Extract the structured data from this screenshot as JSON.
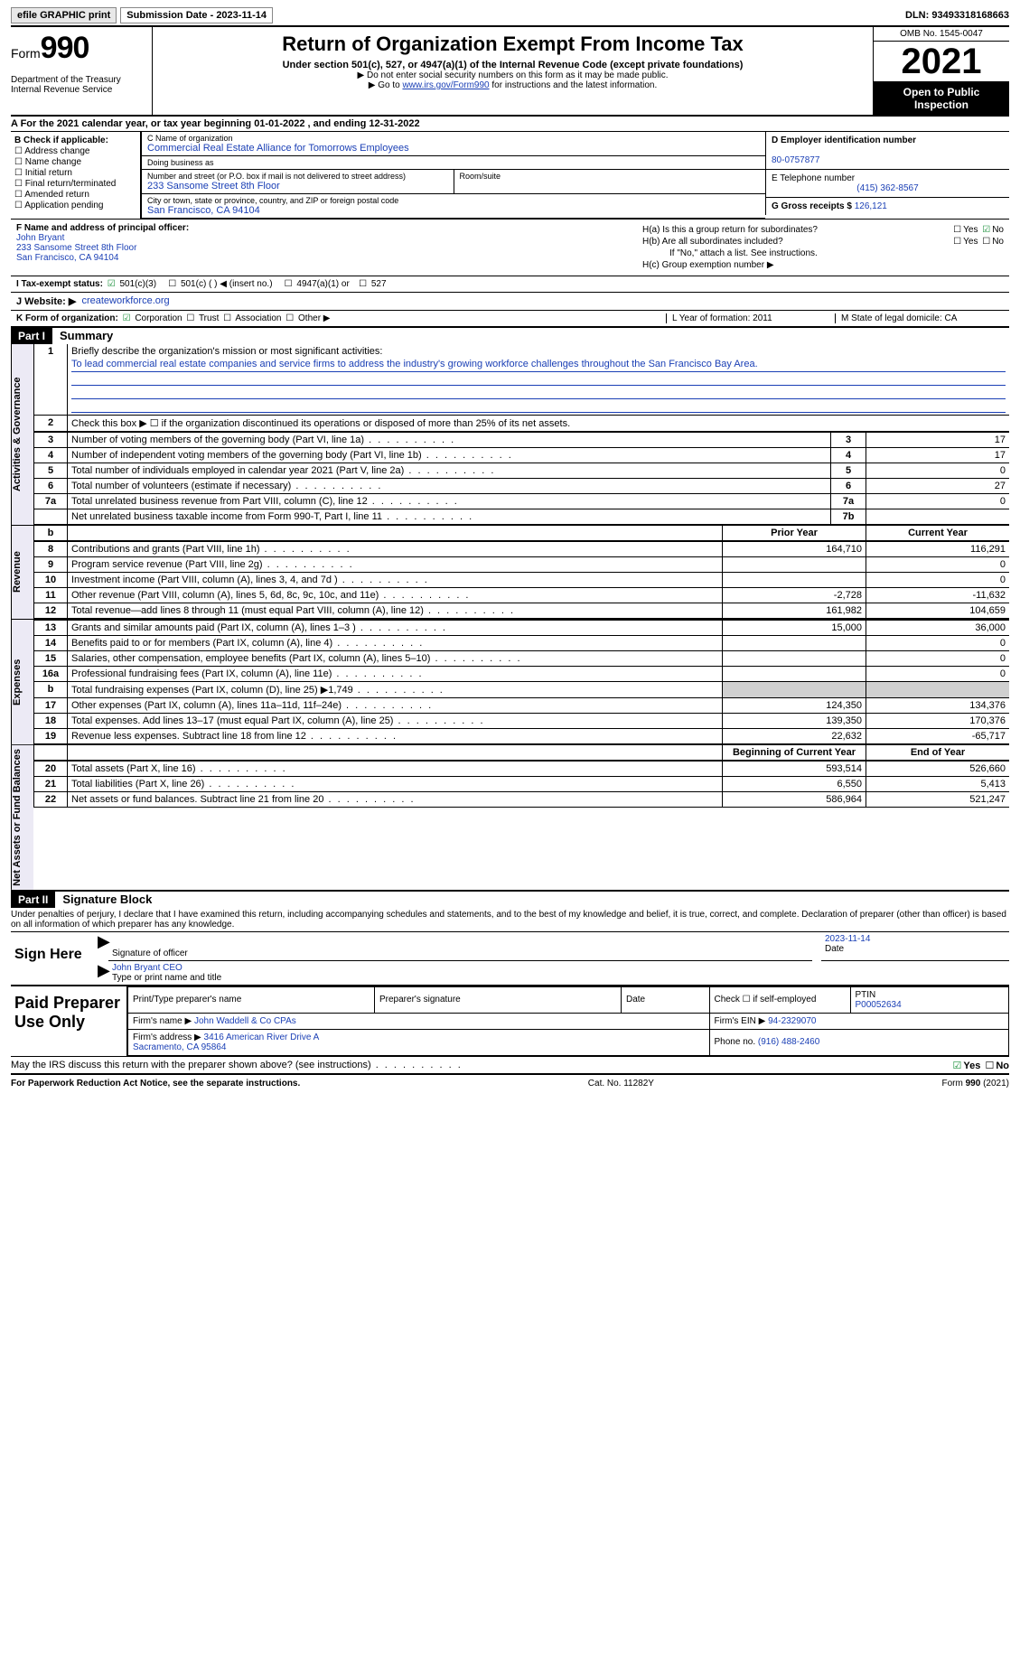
{
  "topbar": {
    "efile": "efile GRAPHIC print",
    "submission": "Submission Date - 2023-11-14",
    "dln": "DLN: 93493318168663"
  },
  "header": {
    "form_label": "Form",
    "form_number": "990",
    "title": "Return of Organization Exempt From Income Tax",
    "subtitle": "Under section 501(c), 527, or 4947(a)(1) of the Internal Revenue Code (except private foundations)",
    "note1": "Do not enter social security numbers on this form as it may be made public.",
    "note2_pre": "Go to ",
    "note2_link": "www.irs.gov/Form990",
    "note2_post": " for instructions and the latest information.",
    "dept": "Department of the Treasury\nInternal Revenue Service",
    "omb": "OMB No. 1545-0047",
    "year": "2021",
    "inspect": "Open to Public Inspection"
  },
  "lineA": "A For the 2021 calendar year, or tax year beginning 01-01-2022   , and ending 12-31-2022",
  "boxB": {
    "label": "B Check if applicable:",
    "opts": [
      "Address change",
      "Name change",
      "Initial return",
      "Final return/terminated",
      "Amended return",
      "Application pending"
    ]
  },
  "boxC": {
    "name_lbl": "C Name of organization",
    "name": "Commercial Real Estate Alliance for Tomorrows Employees",
    "dba_lbl": "Doing business as",
    "dba": "",
    "addr_lbl": "Number and street (or P.O. box if mail is not delivered to street address)",
    "room_lbl": "Room/suite",
    "addr": "233 Sansome Street 8th Floor",
    "city_lbl": "City or town, state or province, country, and ZIP or foreign postal code",
    "city": "San Francisco, CA  94104"
  },
  "boxD": {
    "lbl": "D Employer identification number",
    "val": "80-0757877"
  },
  "boxE": {
    "lbl": "E Telephone number",
    "val": "(415) 362-8567"
  },
  "boxG": {
    "lbl": "G Gross receipts $",
    "val": "126,121"
  },
  "boxF": {
    "lbl": "F Name and address of principal officer:",
    "name": "John Bryant",
    "addr1": "233 Sansome Street 8th Floor",
    "addr2": "San Francisco, CA  94104"
  },
  "boxH": {
    "a": "H(a)  Is this a group return for subordinates?",
    "a_yes": "Yes",
    "a_no": "No",
    "b": "H(b)  Are all subordinates included?",
    "b_yes": "Yes",
    "b_no": "No",
    "b_note": "If \"No,\" attach a list. See instructions.",
    "c": "H(c)  Group exemption number ▶"
  },
  "lineI": {
    "lbl": "I   Tax-exempt status:",
    "o1": "501(c)(3)",
    "o2": "501(c) (  ) ◀ (insert no.)",
    "o3": "4947(a)(1) or",
    "o4": "527"
  },
  "lineJ": {
    "lbl": "J   Website: ▶",
    "val": "createworkforce.org"
  },
  "lineK": {
    "lbl": "K Form of organization:",
    "o1": "Corporation",
    "o2": "Trust",
    "o3": "Association",
    "o4": "Other ▶",
    "L": "L Year of formation: 2011",
    "M": "M State of legal domicile: CA"
  },
  "part1": {
    "hdr": "Part I",
    "title": "Summary",
    "l1_lbl": "Briefly describe the organization's mission or most significant activities:",
    "l1_val": "To lead commercial real estate companies and service firms to address the industry's growing workforce challenges throughout the San Francisco Bay Area.",
    "l2": "Check this box ▶ ☐ if the organization discontinued its operations or disposed of more than 25% of its net assets.",
    "rows_ag": [
      {
        "n": "3",
        "d": "Number of voting members of the governing body (Part VI, line 1a)",
        "b": "3",
        "v": "17"
      },
      {
        "n": "4",
        "d": "Number of independent voting members of the governing body (Part VI, line 1b)",
        "b": "4",
        "v": "17"
      },
      {
        "n": "5",
        "d": "Total number of individuals employed in calendar year 2021 (Part V, line 2a)",
        "b": "5",
        "v": "0"
      },
      {
        "n": "6",
        "d": "Total number of volunteers (estimate if necessary)",
        "b": "6",
        "v": "27"
      },
      {
        "n": "7a",
        "d": "Total unrelated business revenue from Part VIII, column (C), line 12",
        "b": "7a",
        "v": "0"
      },
      {
        "n": "",
        "d": "Net unrelated business taxable income from Form 990-T, Part I, line 11",
        "b": "7b",
        "v": ""
      }
    ],
    "col_py": "Prior Year",
    "col_cy": "Current Year",
    "rows_rev": [
      {
        "n": "8",
        "d": "Contributions and grants (Part VIII, line 1h)",
        "py": "164,710",
        "cy": "116,291"
      },
      {
        "n": "9",
        "d": "Program service revenue (Part VIII, line 2g)",
        "py": "",
        "cy": "0"
      },
      {
        "n": "10",
        "d": "Investment income (Part VIII, column (A), lines 3, 4, and 7d )",
        "py": "",
        "cy": "0"
      },
      {
        "n": "11",
        "d": "Other revenue (Part VIII, column (A), lines 5, 6d, 8c, 9c, 10c, and 11e)",
        "py": "-2,728",
        "cy": "-11,632"
      },
      {
        "n": "12",
        "d": "Total revenue—add lines 8 through 11 (must equal Part VIII, column (A), line 12)",
        "py": "161,982",
        "cy": "104,659"
      }
    ],
    "rows_exp": [
      {
        "n": "13",
        "d": "Grants and similar amounts paid (Part IX, column (A), lines 1–3 )",
        "py": "15,000",
        "cy": "36,000"
      },
      {
        "n": "14",
        "d": "Benefits paid to or for members (Part IX, column (A), line 4)",
        "py": "",
        "cy": "0"
      },
      {
        "n": "15",
        "d": "Salaries, other compensation, employee benefits (Part IX, column (A), lines 5–10)",
        "py": "",
        "cy": "0"
      },
      {
        "n": "16a",
        "d": "Professional fundraising fees (Part IX, column (A), line 11e)",
        "py": "",
        "cy": "0"
      },
      {
        "n": "b",
        "d": "Total fundraising expenses (Part IX, column (D), line 25) ▶1,749",
        "py": "grey",
        "cy": "grey"
      },
      {
        "n": "17",
        "d": "Other expenses (Part IX, column (A), lines 11a–11d, 11f–24e)",
        "py": "124,350",
        "cy": "134,376"
      },
      {
        "n": "18",
        "d": "Total expenses. Add lines 13–17 (must equal Part IX, column (A), line 25)",
        "py": "139,350",
        "cy": "170,376"
      },
      {
        "n": "19",
        "d": "Revenue less expenses. Subtract line 18 from line 12",
        "py": "22,632",
        "cy": "-65,717"
      }
    ],
    "col_by": "Beginning of Current Year",
    "col_ey": "End of Year",
    "rows_net": [
      {
        "n": "20",
        "d": "Total assets (Part X, line 16)",
        "py": "593,514",
        "cy": "526,660"
      },
      {
        "n": "21",
        "d": "Total liabilities (Part X, line 26)",
        "py": "6,550",
        "cy": "5,413"
      },
      {
        "n": "22",
        "d": "Net assets or fund balances. Subtract line 21 from line 20",
        "py": "586,964",
        "cy": "521,247"
      }
    ]
  },
  "vtabs": {
    "ag": "Activities & Governance",
    "rev": "Revenue",
    "exp": "Expenses",
    "net": "Net Assets or Fund Balances"
  },
  "part2": {
    "hdr": "Part II",
    "title": "Signature Block",
    "decl": "Under penalties of perjury, I declare that I have examined this return, including accompanying schedules and statements, and to the best of my knowledge and belief, it is true, correct, and complete. Declaration of preparer (other than officer) is based on all information of which preparer has any knowledge.",
    "sign_here": "Sign Here",
    "sig_lbl": "Signature of officer",
    "date_lbl": "Date",
    "date_val": "2023-11-14",
    "name_lbl": "Type or print name and title",
    "name_val": "John Bryant CEO"
  },
  "paid": {
    "hdr": "Paid Preparer Use Only",
    "c1": "Print/Type preparer's name",
    "c2": "Preparer's signature",
    "c3": "Date",
    "c4_lbl": "Check ☐ if self-employed",
    "c5_lbl": "PTIN",
    "c5_val": "P00052634",
    "firm_lbl": "Firm's name    ▶",
    "firm_val": "John Waddell & Co CPAs",
    "ein_lbl": "Firm's EIN ▶",
    "ein_val": "94-2329070",
    "addr_lbl": "Firm's address ▶",
    "addr_val": "3416 American River Drive A\nSacramento, CA  95864",
    "phone_lbl": "Phone no.",
    "phone_val": "(916) 488-2460"
  },
  "discuss": {
    "q": "May the IRS discuss this return with the preparer shown above? (see instructions)",
    "yes": "Yes",
    "no": "No"
  },
  "footer": {
    "left": "For Paperwork Reduction Act Notice, see the separate instructions.",
    "mid": "Cat. No. 11282Y",
    "right": "Form 990 (2021)"
  }
}
